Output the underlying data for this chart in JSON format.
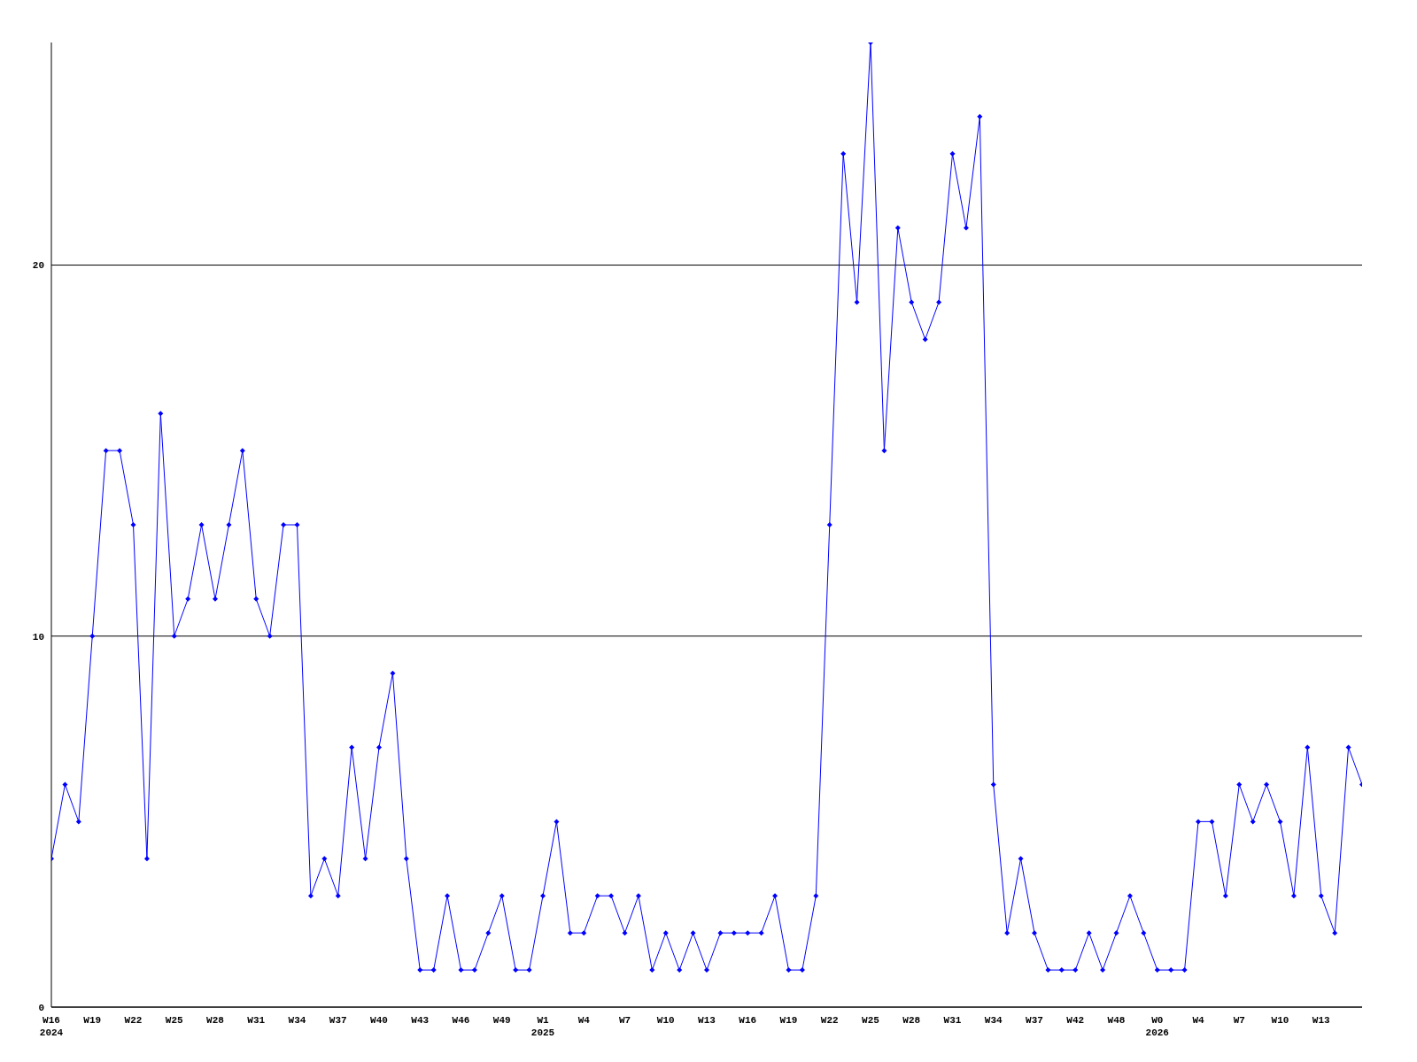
{
  "chart_data": {
    "type": "line",
    "categories": [
      "W16\n2024",
      null,
      null,
      "W19",
      null,
      null,
      "W22",
      null,
      null,
      "W25",
      null,
      null,
      "W28",
      null,
      null,
      "W31",
      null,
      null,
      "W34",
      null,
      null,
      "W37",
      null,
      null,
      "W40",
      null,
      null,
      "W43",
      null,
      null,
      "W46",
      null,
      null,
      "W49",
      null,
      null,
      "W1\n2025",
      null,
      null,
      "W4",
      null,
      null,
      "W7",
      null,
      null,
      "W10",
      null,
      null,
      "W13",
      null,
      null,
      "W16",
      null,
      null,
      "W19",
      null,
      null,
      "W22",
      null,
      null,
      "W25",
      null,
      null,
      "W28",
      null,
      null,
      "W31",
      null,
      null,
      "W34",
      null,
      null,
      "W37",
      null,
      null,
      "W42",
      null,
      null,
      "W48",
      null,
      null,
      "W0\n2026",
      null,
      null,
      "W4",
      null,
      null,
      "W7",
      null,
      null,
      "W10",
      null,
      null,
      "W13",
      null,
      null,
      null
    ],
    "series": [
      {
        "color": "#0000ff",
        "values": [
          4,
          6,
          5,
          10,
          15,
          15,
          13,
          4,
          16,
          10,
          11,
          13,
          11,
          13,
          15,
          11,
          10,
          13,
          13,
          3,
          4,
          3,
          7,
          4,
          7,
          9,
          4,
          1,
          1,
          3,
          1,
          1,
          2,
          3,
          1,
          1,
          3,
          5,
          2,
          2,
          3,
          3,
          2,
          3,
          1,
          2,
          1,
          2,
          1,
          2,
          2,
          2,
          2,
          3,
          1,
          1,
          3,
          13,
          23,
          19,
          26,
          15,
          21,
          19,
          18,
          19,
          23,
          21,
          24,
          6,
          2,
          4,
          2,
          1,
          1,
          1,
          2,
          1,
          2,
          3,
          2,
          1,
          1,
          1,
          5,
          5,
          3,
          6,
          5,
          6,
          5,
          3,
          7,
          3,
          2,
          7,
          6
        ]
      }
    ],
    "ylim": [
      0,
      26
    ],
    "yticks": [
      0,
      10,
      20
    ],
    "grid": "y",
    "marker": "diamond",
    "line_style": "solid"
  }
}
